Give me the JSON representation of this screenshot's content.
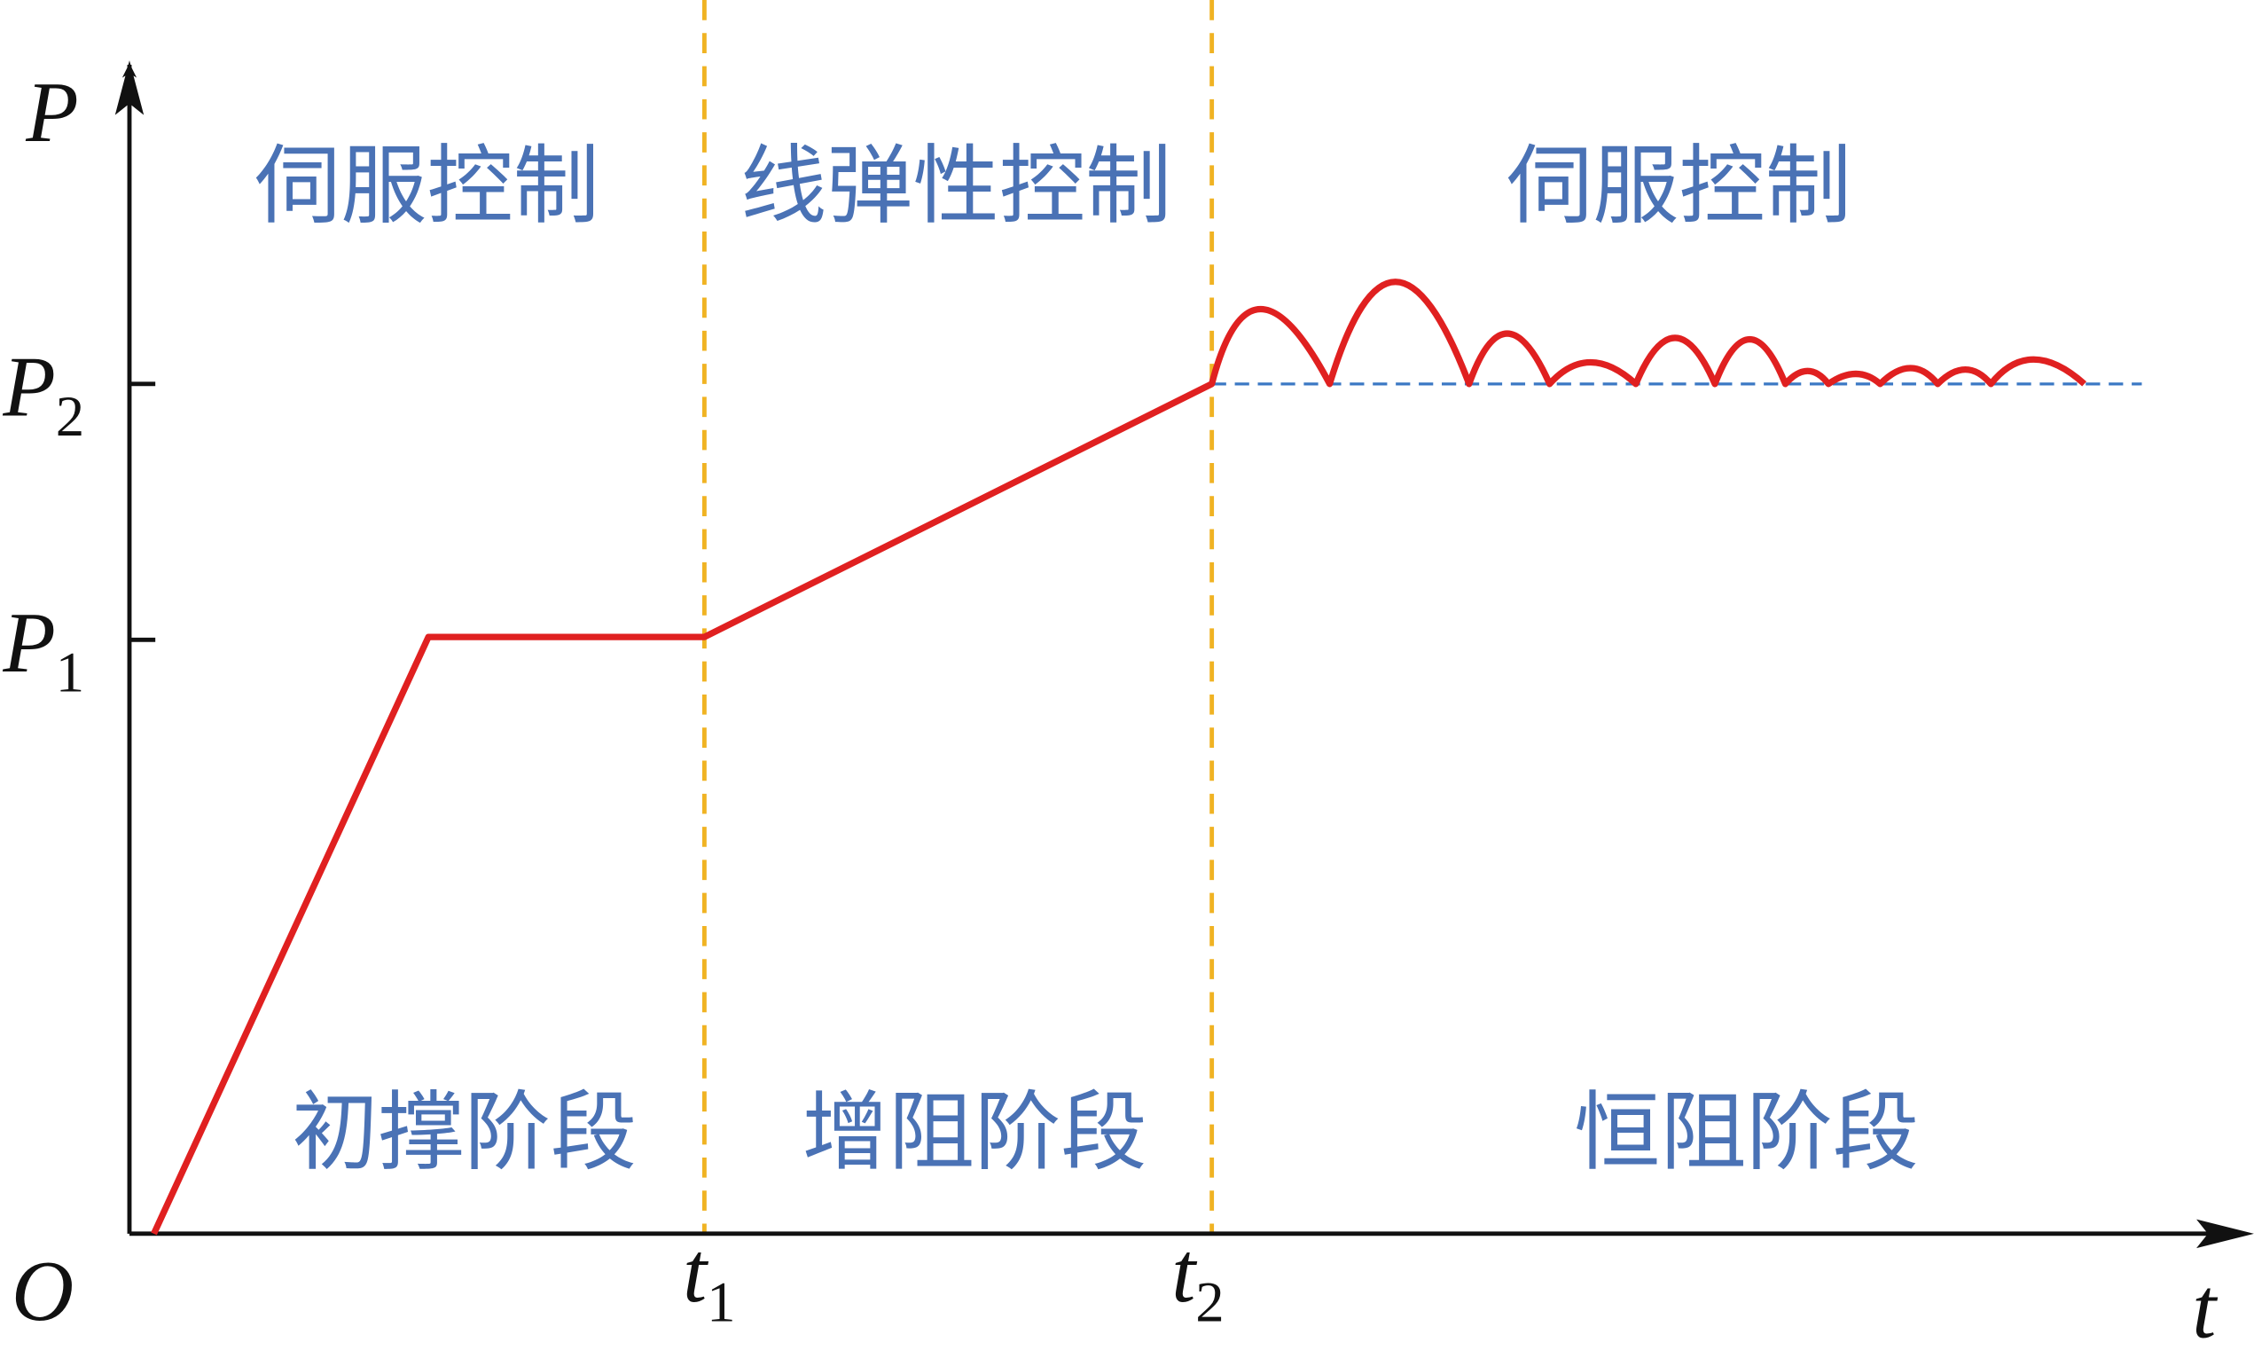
{
  "axes": {
    "y_label": "P",
    "x_label": "t",
    "origin": "O",
    "y_ticks": [
      {
        "main": "P",
        "sub": "1"
      },
      {
        "main": "P",
        "sub": "2"
      }
    ],
    "x_ticks": [
      {
        "main": "t",
        "sub": "1"
      },
      {
        "main": "t",
        "sub": "2"
      }
    ]
  },
  "controls": [
    "伺服控制",
    "线弹性控制",
    "伺服控制"
  ],
  "stages": [
    "初撑阶段",
    "增阻阶段",
    "恒阻阶段"
  ]
}
